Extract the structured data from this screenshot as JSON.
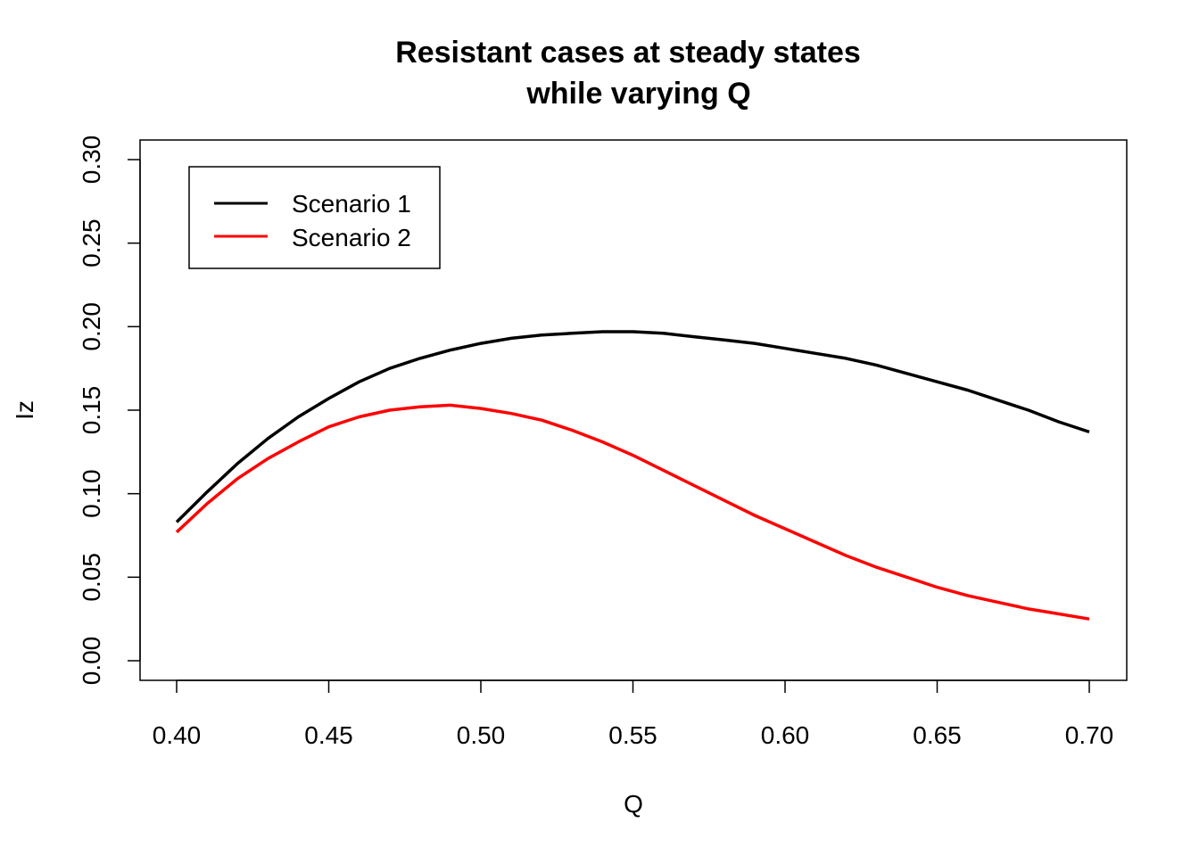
{
  "chart_data": {
    "type": "line",
    "title_line1": "Resistant cases at steady states",
    "title_line2": "while varying Q",
    "xlabel": "Q",
    "ylabel": "Iz",
    "xlim": [
      0.4,
      0.7
    ],
    "ylim": [
      0.0,
      0.3
    ],
    "x_ticks": [
      "0.40",
      "0.45",
      "0.50",
      "0.55",
      "0.60",
      "0.65",
      "0.70"
    ],
    "y_ticks": [
      "0.00",
      "0.05",
      "0.10",
      "0.15",
      "0.20",
      "0.25",
      "0.30"
    ],
    "legend_position": "top-left",
    "grid": false,
    "x": [
      0.4,
      0.41,
      0.42,
      0.43,
      0.44,
      0.45,
      0.46,
      0.47,
      0.48,
      0.49,
      0.5,
      0.51,
      0.52,
      0.53,
      0.54,
      0.55,
      0.56,
      0.57,
      0.58,
      0.59,
      0.6,
      0.61,
      0.62,
      0.63,
      0.64,
      0.65,
      0.66,
      0.67,
      0.68,
      0.69,
      0.7
    ],
    "series": [
      {
        "name": "Scenario 1",
        "color": "#000000",
        "values": [
          0.083,
          0.101,
          0.118,
          0.133,
          0.146,
          0.157,
          0.167,
          0.175,
          0.181,
          0.186,
          0.19,
          0.193,
          0.195,
          0.196,
          0.197,
          0.197,
          0.196,
          0.194,
          0.192,
          0.19,
          0.187,
          0.184,
          0.181,
          0.177,
          0.172,
          0.167,
          0.162,
          0.156,
          0.15,
          0.143,
          0.137
        ]
      },
      {
        "name": "Scenario 2",
        "color": "#ff0000",
        "values": [
          0.077,
          0.094,
          0.109,
          0.121,
          0.131,
          0.14,
          0.146,
          0.15,
          0.152,
          0.153,
          0.151,
          0.148,
          0.144,
          0.138,
          0.131,
          0.123,
          0.114,
          0.105,
          0.096,
          0.087,
          0.079,
          0.071,
          0.063,
          0.056,
          0.05,
          0.044,
          0.039,
          0.035,
          0.031,
          0.028,
          0.025
        ]
      }
    ]
  }
}
